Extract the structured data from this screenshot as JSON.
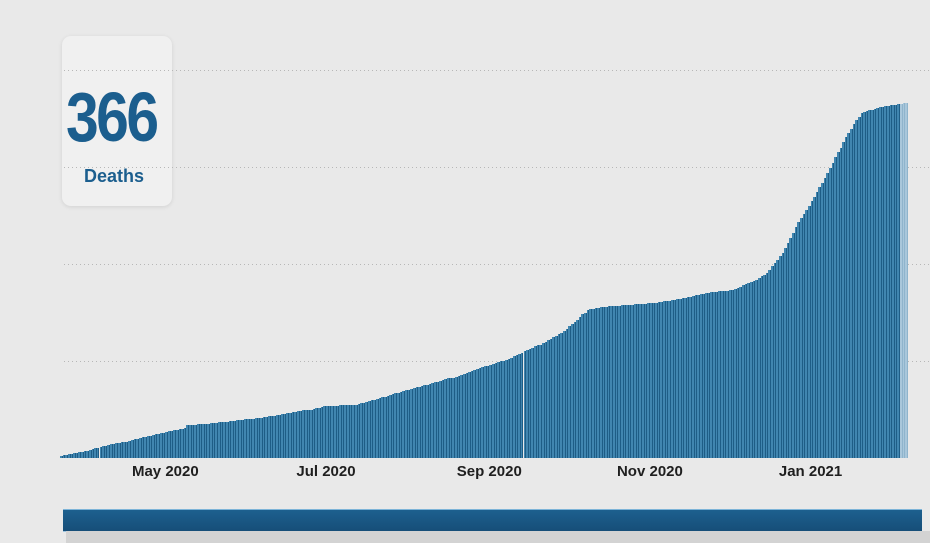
{
  "kpi": {
    "value": "366",
    "label": "Deaths",
    "text_color": "#1b5e8e",
    "card_bg": "#f0f0f0"
  },
  "chart_data": {
    "type": "bar",
    "title": "",
    "xlabel": "",
    "ylabel": "",
    "description": "Daily cumulative deaths bar chart, one thin bar per day, rising from ~2 in late March 2020 to 366 in early February 2021",
    "ylim": [
      0,
      400
    ],
    "gridline_values": [
      100,
      200,
      300,
      400
    ],
    "grid_on": true,
    "y_tick_labels_shown": false,
    "total_days": 322,
    "ticks": [
      {
        "label": "May 2020",
        "day": 40
      },
      {
        "label": "Jul 2020",
        "day": 101
      },
      {
        "label": "Sep 2020",
        "day": 163
      },
      {
        "label": "Nov 2020",
        "day": 224
      },
      {
        "label": "Jan 2021",
        "day": 285
      }
    ],
    "cumulative_anchors": [
      [
        0,
        2
      ],
      [
        8,
        6
      ],
      [
        15,
        11
      ],
      [
        23,
        16
      ],
      [
        30,
        21
      ],
      [
        40,
        27
      ],
      [
        47,
        31
      ],
      [
        48,
        34
      ],
      [
        55,
        35
      ],
      [
        65,
        38
      ],
      [
        75,
        41
      ],
      [
        85,
        45
      ],
      [
        95,
        50
      ],
      [
        100,
        54
      ],
      [
        112,
        55
      ],
      [
        120,
        61
      ],
      [
        130,
        69
      ],
      [
        140,
        76
      ],
      [
        150,
        84
      ],
      [
        159,
        93
      ],
      [
        170,
        102
      ],
      [
        178,
        112
      ],
      [
        184,
        120
      ],
      [
        190,
        129
      ],
      [
        196,
        142
      ],
      [
        200,
        153
      ],
      [
        205,
        156
      ],
      [
        215,
        158
      ],
      [
        225,
        160
      ],
      [
        235,
        164
      ],
      [
        245,
        170
      ],
      [
        255,
        173
      ],
      [
        262,
        181
      ],
      [
        268,
        191
      ],
      [
        274,
        211
      ],
      [
        280,
        243
      ],
      [
        286,
        269
      ],
      [
        292,
        299
      ],
      [
        298,
        331
      ],
      [
        304,
        356
      ],
      [
        310,
        361
      ],
      [
        316,
        364
      ],
      [
        321,
        366
      ]
    ],
    "max_value": 366,
    "highlight_last_n": 3,
    "colors": {
      "bar_fill": "#4186b0",
      "bar_edge": "#1e5d86",
      "bar_highlight_fill": "#a9c7db",
      "bar_highlight_edge": "#8fb4cc",
      "gridline": "#b7b7b7",
      "axis_label": "#1f1f1f"
    }
  },
  "page": {
    "background": "#e9e9e9",
    "bottom_bar_color": "#1d608f",
    "bottom_strip_color": "#d3d3d3"
  }
}
